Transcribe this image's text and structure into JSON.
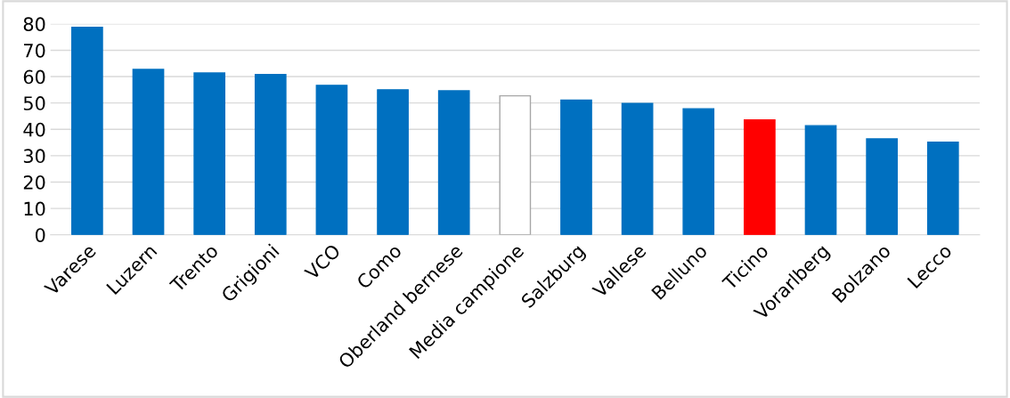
{
  "chart_data": {
    "type": "bar",
    "categories": [
      "Varese",
      "Luzern",
      "Trento",
      "Grigioni",
      "VCO",
      "Como",
      "Oberland bernese",
      "Media campione",
      "Salzburg",
      "Vallese",
      "Belluno",
      "Ticino",
      "Vorarlberg",
      "Bolzano",
      "Lecco"
    ],
    "values": [
      78.7,
      62.7,
      61.4,
      60.8,
      56.7,
      55.0,
      54.6,
      52.7,
      51.1,
      49.8,
      47.8,
      43.6,
      41.4,
      36.4,
      35.1
    ],
    "colors": [
      "#0070c0",
      "#0070c0",
      "#0070c0",
      "#0070c0",
      "#0070c0",
      "#0070c0",
      "#0070c0",
      "#ffffff",
      "#0070c0",
      "#0070c0",
      "#0070c0",
      "#ff0000",
      "#0070c0",
      "#0070c0",
      "#0070c0"
    ],
    "ylim": [
      0,
      80
    ],
    "yticks": [
      0,
      10,
      20,
      30,
      40,
      50,
      60,
      70,
      80
    ],
    "grid": "y",
    "legend": false
  }
}
